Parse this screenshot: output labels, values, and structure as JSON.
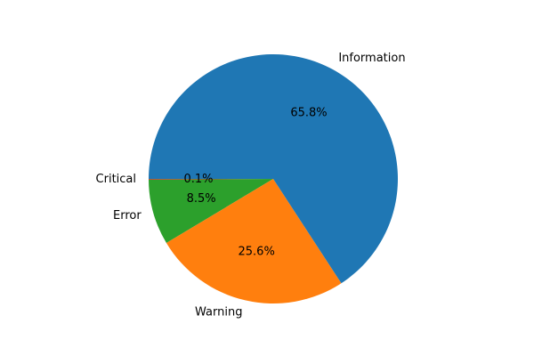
{
  "chart_data": {
    "type": "pie",
    "title": "",
    "start_angle_deg": 180,
    "direction": "counterclockwise",
    "slices": [
      {
        "label": "Critical",
        "value": 0.1,
        "pct_text": "0.1%",
        "color": "#d62728"
      },
      {
        "label": "Error",
        "value": 8.5,
        "pct_text": "8.5%",
        "color": "#2ca02c"
      },
      {
        "label": "Warning",
        "value": 25.6,
        "pct_text": "25.6%",
        "color": "#ff7f0e"
      },
      {
        "label": "Information",
        "value": 65.8,
        "pct_text": "65.8%",
        "color": "#1f77b4"
      }
    ]
  }
}
